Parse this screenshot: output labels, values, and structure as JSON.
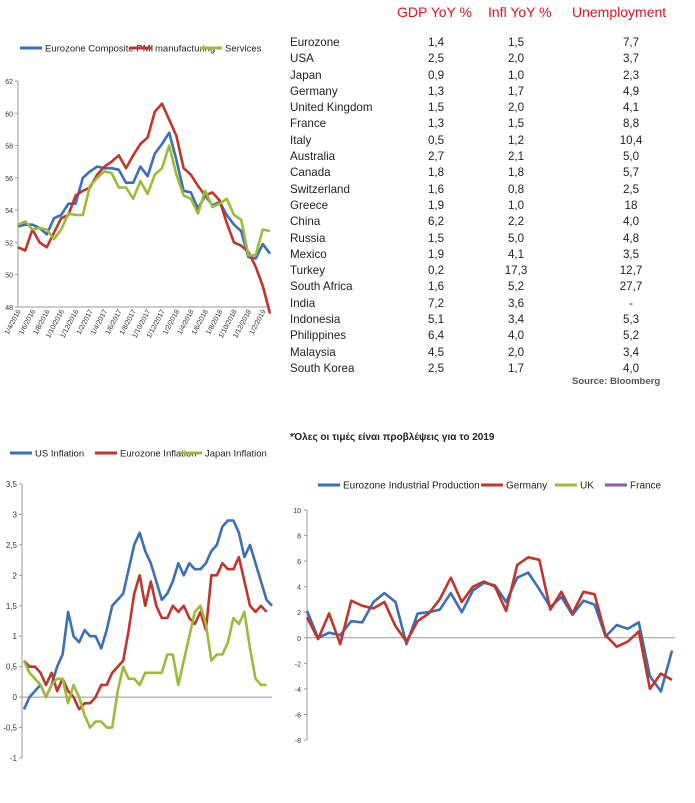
{
  "table": {
    "headers": [
      "GDP YoY %",
      "Infl YoY %",
      "Unemployment"
    ],
    "rows": [
      [
        "Eurozone",
        "1,4",
        "1,5",
        "7,7"
      ],
      [
        "USA",
        "2,5",
        "2,0",
        "3,7"
      ],
      [
        "Japan",
        "0,9",
        "1,0",
        "2,3"
      ],
      [
        "Germany",
        "1,3",
        "1,7",
        "4,9"
      ],
      [
        "United Kingdom",
        "1,5",
        "2,0",
        "4,1"
      ],
      [
        "France",
        "1,3",
        "1,5",
        "8,8"
      ],
      [
        "Italy",
        "0,5",
        "1,2",
        "10,4"
      ],
      [
        "Australia",
        "2,7",
        "2,1",
        "5,0"
      ],
      [
        "Canada",
        "1,8",
        "1,8",
        "5,7"
      ],
      [
        "Switzerland",
        "1,6",
        "0,8",
        "2,5"
      ],
      [
        "Greece",
        "1,9",
        "1,0",
        "18"
      ],
      [
        "China",
        "6,2",
        "2,2",
        "4,0"
      ],
      [
        "Russia",
        "1,5",
        "5,0",
        "4,8"
      ],
      [
        "Mexico",
        "1,9",
        "4,1",
        "3,5"
      ],
      [
        "Turkey",
        "0,2",
        "17,3",
        "12,7"
      ],
      [
        "South Africa",
        "1,6",
        "5,2",
        "27,7"
      ],
      [
        "India",
        "7,2",
        "3,6",
        "-"
      ],
      [
        "Indonesia",
        "5,1",
        "3,4",
        "5,3"
      ],
      [
        "Philippines",
        "6,4",
        "4,0",
        "5,2"
      ],
      [
        "Malaysia",
        "4,5",
        "2,0",
        "3,4"
      ],
      [
        "South Korea",
        "2,5",
        "1,7",
        "4,0"
      ]
    ],
    "source": "Source: Bloomberg",
    "footnote": "*Όλες οι τιμές είναι προβλέψεις για το 2019",
    "header_color": "#e0141e"
  },
  "chart_data": [
    {
      "type": "line",
      "legend_position": "top",
      "ylim": [
        48,
        62
      ],
      "yticks": [
        48,
        50,
        52,
        54,
        56,
        58,
        60,
        62
      ],
      "x": [
        "1/4/2016",
        "1/5/2016",
        "1/6/2016",
        "1/7/2016",
        "1/8/2016",
        "1/9/2016",
        "1/10/2016",
        "1/11/2016",
        "1/12/2016",
        "1/1/2017",
        "1/2/2017",
        "1/3/2017",
        "1/4/2017",
        "1/5/2017",
        "1/6/2017",
        "1/7/2017",
        "1/8/2017",
        "1/9/2017",
        "1/10/2017",
        "1/11/2017",
        "1/12/2017",
        "1/1/2018",
        "1/2/2018",
        "1/3/2018",
        "1/4/2018",
        "1/5/2018",
        "1/6/2018",
        "1/7/2018",
        "1/8/2018",
        "1/9/2018",
        "1/10/2018",
        "1/11/2018",
        "1/12/2018",
        "1/1/2019",
        "1/2/2019",
        "1/3/2019"
      ],
      "x_tick_labels": [
        "1/4/2016",
        "1/6/2016",
        "1/8/2016",
        "1/10/2016",
        "1/12/2016",
        "1/2/2017",
        "1/4/2017",
        "1/6/2017",
        "1/8/2017",
        "1/10/2017",
        "1/12/2017",
        "1/2/2018",
        "1/4/2018",
        "1/6/2018",
        "1/8/2018",
        "1/10/2018",
        "1/12/2018",
        "1/2/2019"
      ],
      "series": [
        {
          "name": "Eurozone Composite PMI",
          "color": "#3b6fb6",
          "values": [
            53.0,
            53.1,
            53.1,
            52.9,
            52.5,
            53.5,
            53.7,
            54.4,
            54.4,
            56.0,
            56.4,
            56.7,
            56.6,
            56.6,
            56.5,
            55.7,
            55.7,
            56.7,
            56.1,
            57.5,
            58.1,
            58.8,
            57.1,
            55.2,
            55.1,
            54.1,
            54.9,
            54.3,
            54.5,
            53.7,
            53.1,
            52.7,
            51.1,
            51.0,
            51.9,
            51.3
          ]
        },
        {
          "name": "manufacturing",
          "color": "#c0362c",
          "values": [
            51.7,
            51.5,
            52.8,
            52.0,
            51.7,
            52.6,
            53.5,
            53.7,
            54.9,
            55.2,
            55.4,
            56.2,
            56.7,
            57.0,
            57.4,
            56.6,
            57.4,
            58.1,
            58.5,
            60.1,
            60.6,
            59.6,
            58.6,
            56.6,
            56.2,
            55.5,
            54.9,
            55.1,
            54.6,
            53.2,
            52.0,
            51.8,
            51.4,
            50.5,
            49.3,
            47.6
          ]
        },
        {
          "name": "Services",
          "color": "#9bbb3a",
          "values": [
            53.1,
            53.3,
            52.8,
            52.9,
            52.8,
            52.2,
            52.8,
            53.8,
            53.7,
            53.7,
            55.5,
            56.0,
            56.4,
            56.3,
            55.4,
            55.4,
            54.7,
            55.8,
            55.0,
            56.2,
            56.6,
            58.0,
            56.2,
            54.9,
            54.7,
            53.8,
            55.2,
            54.2,
            54.4,
            54.7,
            53.7,
            53.4,
            51.2,
            51.2,
            52.8,
            52.7
          ]
        }
      ]
    },
    {
      "type": "line",
      "legend_position": "top",
      "ylim": [
        -1,
        3.5
      ],
      "ytick_labels": [
        "-1",
        "-0,5",
        "0",
        "0,5",
        "1",
        "1,5",
        "2",
        "2,5",
        "3",
        "3,5"
      ],
      "series": [
        {
          "name": "US Inflation",
          "color": "#3b6fb6",
          "values": [
            -0.2,
            0.0,
            0.1,
            0.2,
            0.0,
            0.2,
            0.5,
            0.7,
            1.4,
            1.0,
            0.9,
            1.1,
            1.0,
            1.0,
            0.8,
            1.1,
            1.5,
            1.6,
            1.7,
            2.1,
            2.5,
            2.7,
            2.4,
            2.2,
            1.9,
            1.6,
            1.7,
            1.9,
            2.2,
            2.0,
            2.2,
            2.1,
            2.1,
            2.2,
            2.4,
            2.5,
            2.8,
            2.9,
            2.9,
            2.7,
            2.3,
            2.5,
            2.2,
            1.9,
            1.6,
            1.5
          ]
        },
        {
          "name": "Eurozone Inflation",
          "color": "#c0362c",
          "values": [
            0.6,
            0.5,
            0.5,
            0.4,
            0.2,
            0.4,
            0.1,
            0.3,
            0.1,
            0.0,
            -0.2,
            -0.1,
            -0.1,
            0.0,
            0.2,
            0.2,
            0.4,
            0.5,
            0.6,
            1.1,
            1.7,
            2.0,
            1.5,
            1.9,
            1.5,
            1.3,
            1.3,
            1.5,
            1.4,
            1.5,
            1.3,
            1.2,
            1.4,
            1.1,
            2.0,
            2.0,
            2.2,
            2.1,
            2.1,
            2.3,
            1.9,
            1.5,
            1.4,
            1.5,
            1.4
          ]
        },
        {
          "name": "Japan Inflation",
          "color": "#9bbb3a",
          "values": [
            0.6,
            0.4,
            0.3,
            0.2,
            0.0,
            0.2,
            0.3,
            0.3,
            -0.1,
            0.2,
            0.0,
            -0.3,
            -0.5,
            -0.4,
            -0.4,
            -0.5,
            -0.5,
            0.1,
            0.5,
            0.3,
            0.3,
            0.2,
            0.4,
            0.4,
            0.4,
            0.4,
            0.7,
            0.7,
            0.2,
            0.6,
            1.0,
            1.4,
            1.5,
            1.2,
            0.6,
            0.7,
            0.7,
            0.9,
            1.3,
            1.2,
            1.4,
            0.8,
            0.3,
            0.2,
            0.2
          ]
        }
      ]
    },
    {
      "type": "line",
      "legend_position": "top",
      "ylim": [
        -8,
        10
      ],
      "yticks": [
        -8,
        -6,
        -4,
        -2,
        0,
        2,
        4,
        6,
        8,
        10
      ],
      "series": [
        {
          "name": "Eurozone Industrial Production",
          "color": "#3b6fb6",
          "values": [
            2.1,
            0.0,
            0.4,
            0.2,
            1.3,
            1.2,
            2.8,
            3.5,
            2.8,
            -0.5,
            1.9,
            2.0,
            2.2,
            3.5,
            2.0,
            3.7,
            4.3,
            4.1,
            2.8,
            4.7,
            5.1,
            3.8,
            2.4,
            3.2,
            1.8,
            2.9,
            2.6,
            0.1,
            1.0,
            0.7,
            1.2,
            -3.0,
            -4.2,
            -1.0
          ]
        },
        {
          "name": "Germany",
          "color": "#c0362c",
          "values": [
            1.6,
            -0.1,
            1.9,
            -0.5,
            2.9,
            2.5,
            2.3,
            2.8,
            0.9,
            -0.3,
            1.3,
            1.9,
            3.0,
            4.7,
            2.8,
            4.0,
            4.4,
            4.0,
            2.1,
            5.7,
            6.3,
            6.1,
            2.2,
            3.6,
            1.9,
            3.6,
            3.4,
            0.2,
            -0.7,
            -0.3,
            0.5,
            -4.0,
            -2.8,
            -3.3
          ]
        }
      ]
    },
    {
      "type": "legend_only_series",
      "series": [
        {
          "name": "UK",
          "color": "#9bbb3a"
        },
        {
          "name": "France",
          "color": "#8a5ab8"
        }
      ]
    }
  ]
}
